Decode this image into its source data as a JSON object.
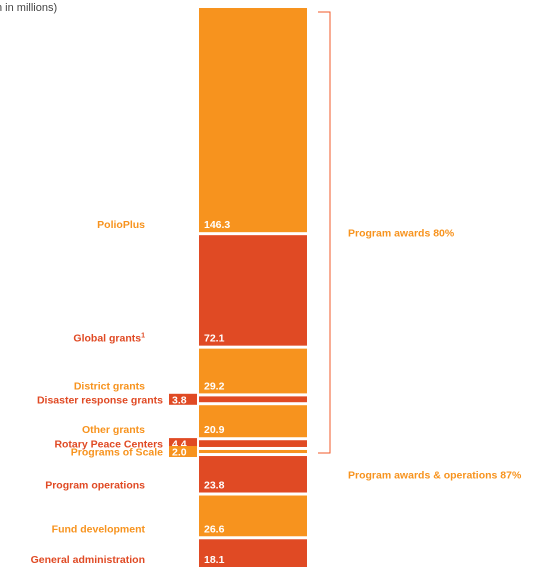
{
  "subtitle": "n in millions)",
  "colors": {
    "orange": "#F7931E",
    "red": "#E04A24",
    "bracket": "#F15A29",
    "text_on_bar": "#ffffff"
  },
  "chart_data": {
    "type": "bar",
    "orientation": "stacked-vertical",
    "unit": "millions",
    "categories": [
      "PolioPlus",
      "Global grants",
      "District grants",
      "Disaster response grants",
      "Other grants",
      "Rotary Peace Centers",
      "Programs of Scale",
      "Program operations",
      "Fund development",
      "General administration"
    ],
    "category_labels": [
      "PolioPlus",
      "Global grants",
      "District grants",
      "Disaster response grants",
      "Other grants",
      "Rotary Peace Centers",
      "Programs of Scale",
      "Program operations",
      "Fund development",
      "General administration"
    ],
    "value_labels": [
      "146.3",
      "72.1",
      "29.2",
      "3.8",
      "20.9",
      "4.4",
      "2.0",
      "23.8",
      "26.6",
      "18.1"
    ],
    "values": [
      146.3,
      72.1,
      29.2,
      3.8,
      20.9,
      4.4,
      2.0,
      23.8,
      26.6,
      18.1
    ],
    "segment_colors": [
      "orange",
      "red",
      "orange",
      "red",
      "orange",
      "red",
      "orange",
      "red",
      "orange",
      "red"
    ],
    "footnote_marker": {
      "category_index": 1,
      "text": "1"
    },
    "brackets": [
      {
        "label": "Program awards 80%",
        "from_index": 0,
        "to_index": 6
      },
      {
        "label": "Program awards & operations 87%",
        "from_index": 7,
        "to_index": 7
      }
    ]
  }
}
